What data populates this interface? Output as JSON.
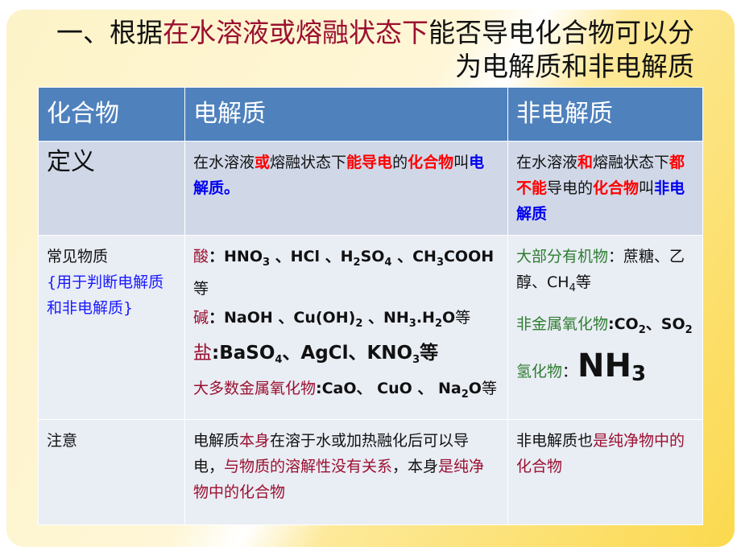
{
  "title": {
    "line1": [
      {
        "t": "一、根据"
      },
      {
        "t": "在水溶液或熔融状态下",
        "c": "red"
      },
      {
        "t": "能否导电化合物可以分"
      }
    ],
    "line2": [
      {
        "t": "为电解质和非电解质"
      }
    ]
  },
  "table": {
    "headers": [
      "化合物",
      "电解质",
      "非电解质"
    ],
    "definition": {
      "label": "定义",
      "electrolyte": [
        {
          "t": "在水溶液"
        },
        {
          "t": "或",
          "c": "bred"
        },
        {
          "t": "熔融状态下"
        },
        {
          "t": "能导电",
          "c": "bred"
        },
        {
          "t": "的"
        },
        {
          "t": "化合物",
          "c": "bred"
        },
        {
          "t": "叫"
        },
        {
          "t": "电解质。",
          "c": "blue"
        }
      ],
      "non_electrolyte": [
        {
          "t": "在水溶液"
        },
        {
          "t": "和",
          "c": "bred"
        },
        {
          "t": "熔融状态下"
        },
        {
          "t": "都不能",
          "c": "bred"
        },
        {
          "t": "导电的"
        },
        {
          "t": "化合物",
          "c": "bred"
        },
        {
          "t": "叫"
        },
        {
          "t": "非电解质",
          "c": "blue"
        }
      ]
    },
    "common": {
      "label": "常见物质",
      "note": "{用于判断电解质和非电解质}",
      "electrolyte": [
        [
          {
            "t": "酸",
            "c": "red"
          },
          {
            "t": "：HNO",
            "c": "b"
          },
          {
            "t": "3",
            "c": "b",
            "sub": true
          },
          {
            "t": " 、HCl 、H",
            "c": "b"
          },
          {
            "t": "2",
            "c": "b",
            "sub": true
          },
          {
            "t": "SO",
            "c": "b"
          },
          {
            "t": "4",
            "c": "b",
            "sub": true
          },
          {
            "t": " 、CH",
            "c": "b"
          },
          {
            "t": "3",
            "c": "b",
            "sub": true
          },
          {
            "t": "COOH",
            "c": "b"
          },
          {
            "t": "等"
          }
        ],
        [
          {
            "t": "碱",
            "c": "red"
          },
          {
            "t": "：NaOH 、Cu(OH)",
            "c": "b"
          },
          {
            "t": "2",
            "c": "b",
            "sub": true
          },
          {
            "t": " 、NH",
            "c": "b"
          },
          {
            "t": "3",
            "c": "b",
            "sub": true
          },
          {
            "t": ".H",
            "c": "b"
          },
          {
            "t": "2",
            "c": "b",
            "sub": true
          },
          {
            "t": "O",
            "c": "b"
          },
          {
            "t": "等"
          }
        ],
        [
          {
            "t": "盐",
            "c": "red big2"
          },
          {
            "t": ":BaSO",
            "c": "b big2"
          },
          {
            "t": "4",
            "c": "b",
            "sub": true
          },
          {
            "t": "、AgCl、KNO",
            "c": "b big2"
          },
          {
            "t": "3",
            "c": "b",
            "sub": true
          },
          {
            "t": "等",
            "c": "b big2"
          }
        ],
        [
          {
            "t": "大多数金属氧化物",
            "c": "red"
          },
          {
            "t": ":CaO、 CuO 、",
            "c": "b"
          },
          {
            "t": " Na",
            "c": "b"
          },
          {
            "t": "2",
            "c": "b",
            "sub": true
          },
          {
            "t": "O",
            "c": "b"
          },
          {
            "t": "等"
          }
        ]
      ],
      "non_electrolyte": [
        [
          {
            "t": "大部分有机物",
            "c": "green"
          },
          {
            "t": "：蔗糖、乙醇、CH"
          },
          {
            "t": "4",
            "sub": true
          },
          {
            "t": "等"
          }
        ],
        [
          {
            "t": "非金属氧化物",
            "c": "green"
          },
          {
            "t": ":CO",
            "c": "b"
          },
          {
            "t": "2",
            "c": "b",
            "sub": true
          },
          {
            "t": "、SO",
            "c": "b"
          },
          {
            "t": "2",
            "c": "b",
            "sub": true
          }
        ],
        [
          {
            "t": "氢化物",
            "c": "green"
          },
          {
            "t": "："
          },
          {
            "t": "NH",
            "c": "huge"
          },
          {
            "t": "3",
            "c": "huge",
            "sub": true
          }
        ]
      ]
    },
    "notes": {
      "label": "注意",
      "electrolyte": [
        {
          "t": "电解质"
        },
        {
          "t": "本身",
          "c": "red"
        },
        {
          "t": "在溶于水或加热融化后可以导电，"
        },
        {
          "t": "与物质的溶解性没有关系",
          "c": "red"
        },
        {
          "t": "，本身"
        },
        {
          "t": "是纯净物中的化合物",
          "c": "red"
        }
      ],
      "non_electrolyte": [
        {
          "t": "非电解质也"
        },
        {
          "t": "是纯净物中的化合物",
          "c": "red"
        }
      ]
    }
  },
  "colors": {
    "header": "#4f81bd",
    "accent_red": "#9b1030",
    "bright_red": "#ff0000",
    "blue": "#0000ee",
    "green": "#2f7d32"
  }
}
